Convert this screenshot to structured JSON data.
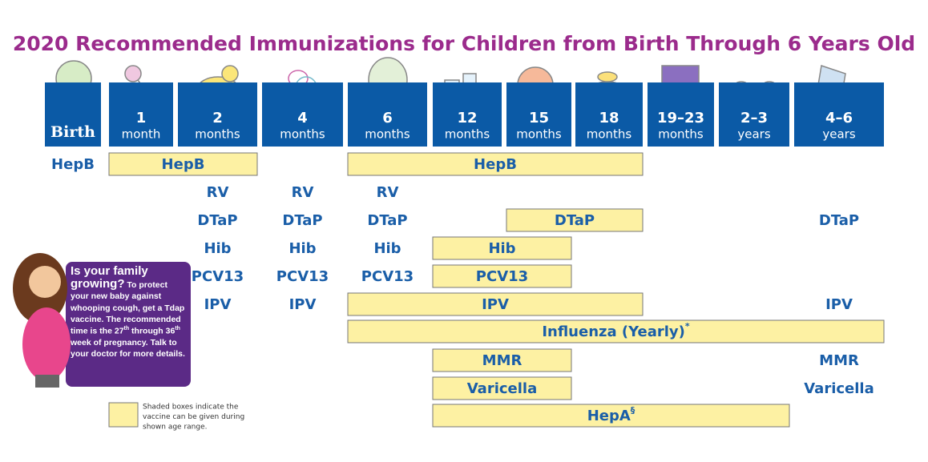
{
  "title": "2020 Recommended Immunizations for Children from Birth Through 6 Years Old",
  "ages": [
    {
      "label": "Birth"
    },
    {
      "number": "1",
      "unit": "month"
    },
    {
      "number": "2",
      "unit": "months"
    },
    {
      "number": "4",
      "unit": "months"
    },
    {
      "number": "6",
      "unit": "months"
    },
    {
      "number": "12",
      "unit": "months"
    },
    {
      "number": "15",
      "unit": "months"
    },
    {
      "number": "18",
      "unit": "months"
    },
    {
      "number": "19–23",
      "unit": "months"
    },
    {
      "number": "2–3",
      "unit": "years"
    },
    {
      "number": "4–6",
      "unit": "years"
    }
  ],
  "rows": [
    {
      "items": [
        {
          "text": "HepB",
          "at": 0
        },
        {
          "text": "HepB",
          "from": 1,
          "to": 2
        },
        {
          "text": "HepB",
          "from": 4,
          "to": 7
        }
      ]
    },
    {
      "items": [
        {
          "text": "RV",
          "at": 2
        },
        {
          "text": "RV",
          "at": 3
        },
        {
          "text": "RV",
          "at": 4
        }
      ]
    },
    {
      "items": [
        {
          "text": "DTaP",
          "at": 2
        },
        {
          "text": "DTaP",
          "at": 3
        },
        {
          "text": "DTaP",
          "at": 4
        },
        {
          "text": "DTaP",
          "from": 6,
          "to": 7
        },
        {
          "text": "DTaP",
          "at": 10
        }
      ]
    },
    {
      "items": [
        {
          "text": "Hib",
          "at": 2
        },
        {
          "text": "Hib",
          "at": 3
        },
        {
          "text": "Hib",
          "at": 4
        },
        {
          "text": "Hib",
          "from": 5,
          "to": 6
        }
      ]
    },
    {
      "items": [
        {
          "text": "PCV13",
          "at": 2
        },
        {
          "text": "PCV13",
          "at": 3
        },
        {
          "text": "PCV13",
          "at": 4
        },
        {
          "text": "PCV13",
          "from": 5,
          "to": 6
        }
      ]
    },
    {
      "items": [
        {
          "text": "IPV",
          "at": 2
        },
        {
          "text": "IPV",
          "at": 3
        },
        {
          "text": "IPV",
          "from": 4,
          "to": 7
        },
        {
          "text": "IPV",
          "at": 10
        }
      ]
    },
    {
      "items": [
        {
          "text": "Influenza (Yearly)",
          "sup": "*",
          "from": 4,
          "to": 10
        }
      ]
    },
    {
      "items": [
        {
          "text": "MMR",
          "from": 5,
          "to": 6
        },
        {
          "text": "MMR",
          "at": 10
        }
      ]
    },
    {
      "items": [
        {
          "text": "Varicella",
          "from": 5,
          "to": 6
        },
        {
          "text": "Varicella",
          "at": 10
        }
      ]
    },
    {
      "items": [
        {
          "text": "HepA",
          "sup": "§",
          "from": 5,
          "to": 9
        }
      ]
    }
  ],
  "callout": {
    "heading": "Is your family growing?",
    "body": [
      "To protect your new baby against whooping cough, get a Tdap vaccine.  The recommended time is the 27",
      "th",
      " through 36",
      "th",
      " week of pregnancy. Talk to your doctor for more details."
    ]
  },
  "legend": {
    "lines": [
      "Shaded boxes indicate the",
      "vaccine can be given during",
      "shown age range."
    ]
  }
}
